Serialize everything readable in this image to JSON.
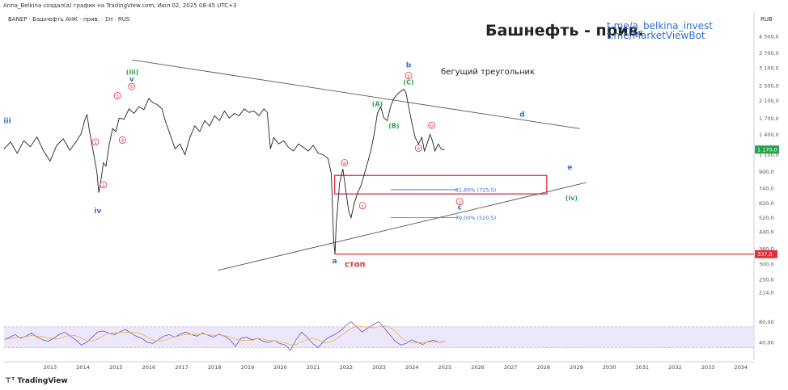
{
  "header": {
    "meta": "Anna_Belkina создал(а) график на TradingView.com, Июл 02, 2025 08:45 UTC+3",
    "symbol": "BANEP · Башнефть АНК - прив. · 1Н · RUS",
    "title": "Башнефть - прив.",
    "link1": "t.me/a_belkina_invest",
    "link2": "t.me/MarketViewBot",
    "brand": "TradingView"
  },
  "colors": {
    "price": "#222222",
    "resistance": "#555555",
    "fib": "#2f6fd6",
    "stop": "#e0303a",
    "green": "#27a24a",
    "blue": "#2f6fd6",
    "rsi": "#6a4fd8",
    "rsi_ma": "#e5b83a"
  },
  "chart_data": {
    "type": "line",
    "currency": "RUB",
    "scale": "log",
    "ylim": [
      180,
      5200
    ],
    "y_ticks": [
      214,
      250,
      300,
      337,
      360,
      440,
      520,
      620,
      740,
      900,
      1100,
      1400,
      1700,
      2100,
      2500,
      3100,
      3700,
      4500
    ],
    "y_tick_labels": [
      "214,0",
      "250,0",
      "300,0",
      "337,0",
      "360,0",
      "440,0",
      "520,0",
      "620,0",
      "740,0",
      "900,0",
      "1 100,0",
      "1 400,0",
      "1 700,0",
      "2 100,0",
      "2 500,0",
      "3 100,0",
      "3 700,0",
      "4 500,0"
    ],
    "x_ticks": [
      "2013",
      "2014",
      "2015",
      "2016",
      "2017",
      "2018",
      "2019",
      "2020",
      "2021",
      "2022",
      "2023",
      "2024",
      "2025",
      "2026",
      "2027",
      "2028",
      "2029",
      "2030",
      "2031",
      "2032",
      "2033",
      "2034"
    ],
    "xlim": [
      2012.1,
      2034.9
    ],
    "last_price": 1170,
    "last_price_label": "1 170,0",
    "stop_price": 337,
    "stop_price_label": "337,0",
    "stop_text": "стоп",
    "series": [
      {
        "points": [
          [
            2012.1,
            1180
          ],
          [
            2012.3,
            1280
          ],
          [
            2012.5,
            1120
          ],
          [
            2012.7,
            1300
          ],
          [
            2012.9,
            1210
          ],
          [
            2013.1,
            1360
          ],
          [
            2013.3,
            1150
          ],
          [
            2013.5,
            1020
          ],
          [
            2013.7,
            1230
          ],
          [
            2013.9,
            1330
          ],
          [
            2014.1,
            1160
          ],
          [
            2014.3,
            1290
          ],
          [
            2014.45,
            1420
          ],
          [
            2014.55,
            1650
          ],
          [
            2014.62,
            1780
          ],
          [
            2014.7,
            1450
          ],
          [
            2014.78,
            1220
          ],
          [
            2014.85,
            1050
          ],
          [
            2014.92,
            900
          ],
          [
            2014.98,
            700
          ],
          [
            2015.05,
            820
          ],
          [
            2015.12,
            1000
          ],
          [
            2015.2,
            960
          ],
          [
            2015.3,
            1250
          ],
          [
            2015.4,
            1500
          ],
          [
            2015.5,
            1450
          ],
          [
            2015.6,
            1700
          ],
          [
            2015.75,
            1680
          ],
          [
            2015.9,
            1900
          ],
          [
            2016.05,
            1800
          ],
          [
            2016.2,
            1950
          ],
          [
            2016.35,
            1880
          ],
          [
            2016.5,
            2150
          ],
          [
            2016.62,
            2050
          ],
          [
            2016.75,
            2000
          ],
          [
            2016.9,
            1900
          ],
          [
            2017.0,
            1650
          ],
          [
            2017.15,
            1400
          ],
          [
            2017.3,
            1180
          ],
          [
            2017.45,
            1250
          ],
          [
            2017.6,
            1100
          ],
          [
            2017.75,
            1350
          ],
          [
            2017.9,
            1550
          ],
          [
            2018.05,
            1450
          ],
          [
            2018.2,
            1650
          ],
          [
            2018.35,
            1550
          ],
          [
            2018.5,
            1750
          ],
          [
            2018.65,
            1650
          ],
          [
            2018.8,
            1850
          ],
          [
            2018.95,
            1700
          ],
          [
            2019.1,
            1800
          ],
          [
            2019.25,
            1750
          ],
          [
            2019.4,
            1900
          ],
          [
            2019.55,
            1820
          ],
          [
            2019.7,
            1850
          ],
          [
            2019.85,
            1750
          ],
          [
            2020.0,
            1900
          ],
          [
            2020.1,
            1820
          ],
          [
            2020.2,
            1180
          ],
          [
            2020.3,
            1350
          ],
          [
            2020.45,
            1250
          ],
          [
            2020.6,
            1300
          ],
          [
            2020.75,
            1200
          ],
          [
            2020.9,
            1150
          ],
          [
            2021.05,
            1250
          ],
          [
            2021.2,
            1200
          ],
          [
            2021.35,
            1150
          ],
          [
            2021.5,
            1230
          ],
          [
            2021.65,
            1120
          ],
          [
            2021.8,
            1100
          ],
          [
            2021.95,
            1050
          ],
          [
            2022.05,
            880
          ],
          [
            2022.12,
            400
          ],
          [
            2022.16,
            337
          ],
          [
            2022.2,
            480
          ],
          [
            2022.3,
            780
          ],
          [
            2022.4,
            930
          ],
          [
            2022.5,
            700
          ],
          [
            2022.58,
            560
          ],
          [
            2022.65,
            520
          ],
          [
            2022.75,
            620
          ],
          [
            2022.85,
            700
          ],
          [
            2022.95,
            760
          ],
          [
            2023.05,
            870
          ],
          [
            2023.15,
            1000
          ],
          [
            2023.25,
            1150
          ],
          [
            2023.35,
            1400
          ],
          [
            2023.45,
            1800
          ],
          [
            2023.55,
            1950
          ],
          [
            2023.65,
            1700
          ],
          [
            2023.75,
            1650
          ],
          [
            2023.85,
            1950
          ],
          [
            2023.95,
            2150
          ],
          [
            2024.1,
            2300
          ],
          [
            2024.25,
            2400
          ],
          [
            2024.32,
            2300
          ],
          [
            2024.4,
            1950
          ],
          [
            2024.5,
            1600
          ],
          [
            2024.6,
            1350
          ],
          [
            2024.7,
            1250
          ],
          [
            2024.8,
            1350
          ],
          [
            2024.88,
            1150
          ],
          [
            2024.96,
            1250
          ],
          [
            2025.05,
            1400
          ],
          [
            2025.12,
            1300
          ],
          [
            2025.2,
            1150
          ],
          [
            2025.3,
            1250
          ],
          [
            2025.4,
            1170
          ],
          [
            2025.5,
            1170
          ]
        ]
      }
    ],
    "resistance_line": {
      "from": [
        2016.0,
        3400
      ],
      "to": [
        2029.6,
        1500
      ],
      "label": "бегущий треугольник"
    },
    "support_line": {
      "from": [
        2018.6,
        278
      ],
      "to": [
        2029.8,
        790
      ]
    },
    "fib_levels": [
      {
        "label": "61,80% (725,5)",
        "value": 725.5,
        "x_start": 2023.85,
        "x_end": 2025.9
      },
      {
        "label": "79,00% (520,5)",
        "value": 520.5,
        "x_start": 2023.85,
        "x_end": 2025.9
      }
    ],
    "target_zone": {
      "x_start": 2022.15,
      "x_end": 2028.6,
      "y_low": 690,
      "y_high": 860
    },
    "wave_labels": [
      {
        "text": "iii",
        "x": 2012.2,
        "y": 1650,
        "color": "blue"
      },
      {
        "text": "(iii)",
        "x": 2016.0,
        "y": 2950,
        "color": "green"
      },
      {
        "text": "v",
        "x": 2015.98,
        "y": 2700,
        "color": "blue"
      },
      {
        "text": "1",
        "x": 2014.88,
        "y": 1280,
        "color": "red-circle"
      },
      {
        "text": "2",
        "x": 2015.12,
        "y": 770,
        "color": "red-circle"
      },
      {
        "text": "3",
        "x": 2015.55,
        "y": 2220,
        "color": "red-circle"
      },
      {
        "text": "4",
        "x": 2015.7,
        "y": 1310,
        "color": "red-circle"
      },
      {
        "text": "5",
        "x": 2015.98,
        "y": 2480,
        "color": "red-circle"
      },
      {
        "text": "iv",
        "x": 2014.95,
        "y": 565,
        "color": "blue"
      },
      {
        "text": "a",
        "x": 2022.15,
        "y": 312,
        "color": "blue"
      },
      {
        "text": "w",
        "x": 2022.45,
        "y": 1000,
        "color": "red-circle"
      },
      {
        "text": "x",
        "x": 2023.0,
        "y": 600,
        "color": "red-circle"
      },
      {
        "text": "(A)",
        "x": 2023.45,
        "y": 2020,
        "color": "green"
      },
      {
        "text": "(B)",
        "x": 2023.95,
        "y": 1560,
        "color": "green"
      },
      {
        "text": "(C)",
        "x": 2024.4,
        "y": 2620,
        "color": "green"
      },
      {
        "text": "y",
        "x": 2024.4,
        "y": 2820,
        "color": "red-circle"
      },
      {
        "text": "b",
        "x": 2024.4,
        "y": 3200,
        "color": "blue"
      },
      {
        "text": "a",
        "x": 2024.7,
        "y": 1190,
        "color": "red-circle"
      },
      {
        "text": "b",
        "x": 2025.1,
        "y": 1560,
        "color": "red-circle"
      },
      {
        "text": "c",
        "x": 2025.95,
        "y": 630,
        "color": "red-circle"
      },
      {
        "text": "c",
        "x": 2025.95,
        "y": 590,
        "color": "blue"
      },
      {
        "text": "d",
        "x": 2027.85,
        "y": 1780,
        "color": "blue"
      },
      {
        "text": "e",
        "x": 2029.3,
        "y": 950,
        "color": "blue"
      },
      {
        "text": "(iv)",
        "x": 2029.35,
        "y": 660,
        "color": "green"
      }
    ],
    "rsi": {
      "levels": [
        70,
        30
      ],
      "tick_values": [
        80,
        40
      ],
      "tick_labels": [
        "80,00",
        "40,00"
      ],
      "values": [
        45,
        50,
        55,
        48,
        52,
        58,
        50,
        45,
        42,
        48,
        55,
        60,
        52,
        45,
        35,
        40,
        50,
        60,
        62,
        58,
        55,
        60,
        65,
        58,
        52,
        48,
        40,
        38,
        45,
        52,
        55,
        50,
        56,
        60,
        55,
        52,
        58,
        54,
        50,
        56,
        52,
        45,
        32,
        48,
        50,
        45,
        48,
        42,
        40,
        44,
        38,
        35,
        25,
        45,
        60,
        50,
        38,
        30,
        42,
        50,
        55,
        62,
        72,
        80,
        70,
        60,
        68,
        74,
        80,
        68,
        55,
        42,
        35,
        38,
        45,
        40,
        36,
        42,
        44,
        40,
        42
      ]
    }
  }
}
